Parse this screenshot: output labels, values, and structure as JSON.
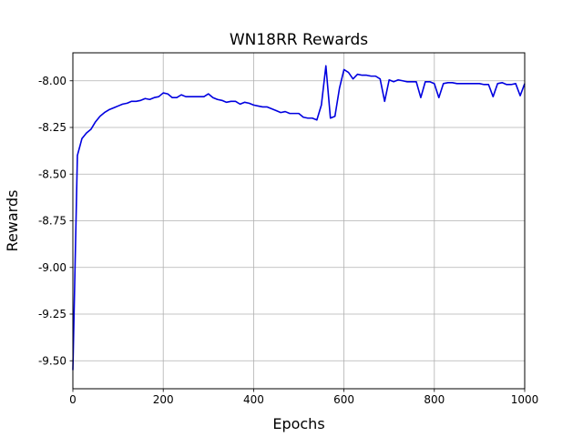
{
  "chart_data": {
    "type": "line",
    "title": "WN18RR Rewards",
    "xlabel": "Epochs",
    "ylabel": "Rewards",
    "xlim": [
      0,
      1000
    ],
    "ylim": [
      -9.65,
      -7.85
    ],
    "x_ticks": [
      0,
      200,
      400,
      600,
      800,
      1000
    ],
    "y_ticks": [
      -9.5,
      -9.25,
      -9.0,
      -8.75,
      -8.5,
      -8.25,
      -8.0
    ],
    "x_tick_labels": [
      "0",
      "200",
      "400",
      "600",
      "800",
      "1000"
    ],
    "y_tick_labels": [
      "-9.50",
      "-9.25",
      "-9.00",
      "-8.75",
      "-8.50",
      "-8.25",
      "-8.00"
    ],
    "grid": true,
    "series": [
      {
        "color": "#0000e0",
        "x": [
          0,
          10,
          20,
          30,
          40,
          50,
          60,
          70,
          80,
          90,
          100,
          110,
          120,
          130,
          140,
          150,
          160,
          170,
          180,
          190,
          200,
          210,
          220,
          230,
          240,
          250,
          260,
          270,
          280,
          290,
          300,
          310,
          320,
          330,
          340,
          350,
          360,
          370,
          380,
          390,
          400,
          410,
          420,
          430,
          440,
          450,
          460,
          470,
          480,
          490,
          500,
          510,
          520,
          530,
          540,
          550,
          560,
          570,
          580,
          590,
          600,
          610,
          620,
          630,
          640,
          650,
          660,
          670,
          680,
          690,
          700,
          710,
          720,
          730,
          740,
          750,
          760,
          770,
          780,
          790,
          800,
          810,
          820,
          830,
          840,
          850,
          860,
          870,
          880,
          890,
          900,
          910,
          920,
          930,
          940,
          950,
          960,
          970,
          980,
          990,
          1000
        ],
        "y": [
          -9.55,
          -8.4,
          -8.31,
          -8.28,
          -8.26,
          -8.22,
          -8.19,
          -8.17,
          -8.155,
          -8.145,
          -8.135,
          -8.125,
          -8.12,
          -8.11,
          -8.11,
          -8.105,
          -8.095,
          -8.1,
          -8.09,
          -8.085,
          -8.065,
          -8.07,
          -8.09,
          -8.09,
          -8.075,
          -8.085,
          -8.085,
          -8.085,
          -8.085,
          -8.085,
          -8.07,
          -8.09,
          -8.1,
          -8.105,
          -8.115,
          -8.11,
          -8.11,
          -8.125,
          -8.115,
          -8.12,
          -8.13,
          -8.135,
          -8.14,
          -8.14,
          -8.15,
          -8.16,
          -8.17,
          -8.165,
          -8.175,
          -8.175,
          -8.175,
          -8.195,
          -8.2,
          -8.2,
          -8.21,
          -8.13,
          -7.92,
          -8.2,
          -8.19,
          -8.04,
          -7.94,
          -7.955,
          -7.99,
          -7.965,
          -7.97,
          -7.97,
          -7.975,
          -7.975,
          -7.99,
          -8.11,
          -7.995,
          -8.005,
          -7.995,
          -8.0,
          -8.005,
          -8.005,
          -8.005,
          -8.09,
          -8.005,
          -8.005,
          -8.015,
          -8.09,
          -8.015,
          -8.01,
          -8.01,
          -8.015,
          -8.015,
          -8.015,
          -8.015,
          -8.015,
          -8.015,
          -8.02,
          -8.02,
          -8.085,
          -8.015,
          -8.01,
          -8.02,
          -8.02,
          -8.015,
          -8.08,
          -8.015
        ]
      }
    ]
  }
}
